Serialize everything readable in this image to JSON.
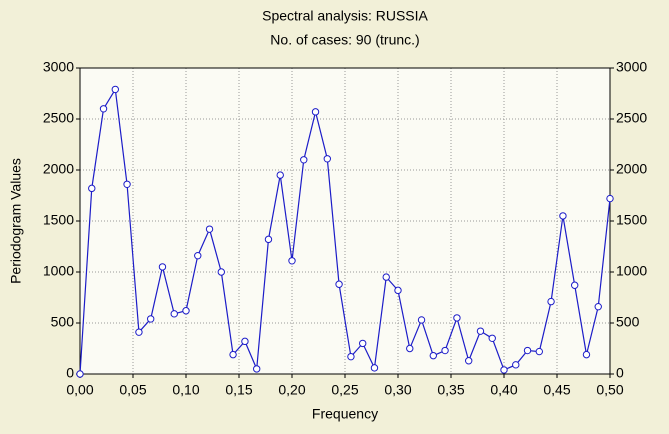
{
  "chart_data": {
    "type": "line",
    "title": "Spectral analysis: RUSSIA",
    "subtitle": "No. of cases: 90 (trunc.)",
    "x_label": "Frequency",
    "y_label": "Periodogram Values",
    "x": [
      0,
      0.0111,
      0.0222,
      0.0333,
      0.0444,
      0.0556,
      0.0667,
      0.0778,
      0.0889,
      0.1,
      0.1111,
      0.1222,
      0.1333,
      0.1444,
      0.1556,
      0.1667,
      0.1778,
      0.1889,
      0.2,
      0.2111,
      0.2222,
      0.2333,
      0.2444,
      0.2556,
      0.2667,
      0.2778,
      0.2889,
      0.3,
      0.3111,
      0.3222,
      0.3333,
      0.3444,
      0.3556,
      0.3667,
      0.3778,
      0.3889,
      0.4,
      0.4111,
      0.4222,
      0.4333,
      0.4444,
      0.4556,
      0.4667,
      0.4778,
      0.4889,
      0.5
    ],
    "series": [
      {
        "name": "Periodogram Values",
        "color": "#1c1cc8",
        "values": [
          0,
          1820,
          2600,
          2790,
          1860,
          410,
          540,
          1050,
          590,
          620,
          1160,
          1420,
          1000,
          190,
          320,
          50,
          1320,
          1950,
          1110,
          2100,
          2570,
          2110,
          880,
          170,
          300,
          60,
          950,
          820,
          250,
          530,
          180,
          230,
          550,
          130,
          420,
          350,
          40,
          90,
          230,
          220,
          710,
          1550,
          870,
          190,
          660,
          1720
        ]
      }
    ],
    "xlim": [
      0,
      0.5
    ],
    "xticks": [
      {
        "value": 0,
        "label": "0,00"
      },
      {
        "value": 0.05,
        "label": "0,05"
      },
      {
        "value": 0.1,
        "label": "0,10"
      },
      {
        "value": 0.15,
        "label": "0,15"
      },
      {
        "value": 0.2,
        "label": "0,20"
      },
      {
        "value": 0.25,
        "label": "0,25"
      },
      {
        "value": 0.3,
        "label": "0,30"
      },
      {
        "value": 0.35,
        "label": "0,35"
      },
      {
        "value": 0.4,
        "label": "0,40"
      },
      {
        "value": 0.45,
        "label": "0,45"
      },
      {
        "value": 0.5,
        "label": "0,50"
      }
    ],
    "ylim": [
      0,
      3000
    ],
    "yticks": [
      0,
      500,
      1000,
      1500,
      2000,
      2500,
      3000
    ],
    "y2lim": [
      0,
      3000
    ],
    "y2ticks": [
      0,
      500,
      1000,
      1500,
      2000,
      2500,
      3000
    ],
    "grid": true
  }
}
